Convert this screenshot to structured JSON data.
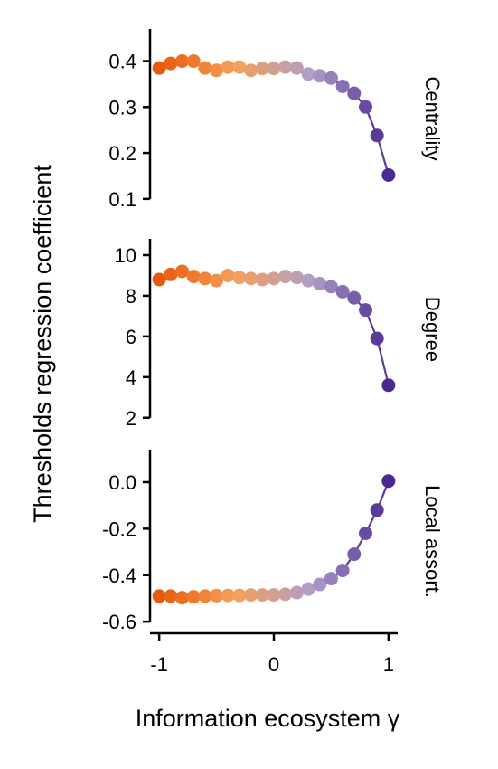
{
  "chart_data": {
    "type": "line",
    "ylabel": "Thresholds regression coefficient",
    "xlabel": "Information ecosystem γ",
    "xlim": [
      -1.08,
      1.08
    ],
    "xticks": [
      -1,
      0,
      1
    ],
    "xtick_labels": [
      "-1",
      "0",
      "1"
    ],
    "grid": false,
    "legend": "none",
    "colormap": [
      "#e8590c",
      "#f5a05a",
      "#b09ec8",
      "#4b2991"
    ],
    "line_color": "#5d3a9b",
    "x": [
      -1.0,
      -0.9,
      -0.8,
      -0.7,
      -0.6,
      -0.5,
      -0.4,
      -0.3,
      -0.2,
      -0.1,
      0.0,
      0.1,
      0.2,
      0.3,
      0.4,
      0.5,
      0.6,
      0.7,
      0.8,
      0.9,
      1.0
    ],
    "panels": [
      {
        "label": "Centrality",
        "ylim": [
          0.08,
          0.47
        ],
        "yticks": [
          0.1,
          0.2,
          0.3,
          0.4
        ],
        "ytick_labels": [
          "0.1",
          "0.2",
          "0.3",
          "0.4"
        ],
        "values": [
          0.385,
          0.395,
          0.4,
          0.4,
          0.385,
          0.38,
          0.387,
          0.387,
          0.38,
          0.384,
          0.384,
          0.387,
          0.385,
          0.372,
          0.368,
          0.363,
          0.345,
          0.33,
          0.3,
          0.238,
          0.152
        ]
      },
      {
        "label": "Degree",
        "ylim": [
          1.9,
          10.8
        ],
        "yticks": [
          2,
          4,
          6,
          8,
          10
        ],
        "ytick_labels": [
          "2",
          "4",
          "6",
          "8",
          "10"
        ],
        "values": [
          8.8,
          9.05,
          9.2,
          8.95,
          8.85,
          8.75,
          9.0,
          8.9,
          8.85,
          8.8,
          8.85,
          8.95,
          8.9,
          8.75,
          8.6,
          8.45,
          8.2,
          7.9,
          7.3,
          5.9,
          3.6
        ]
      },
      {
        "label": "Local assort.",
        "ylim": [
          -0.65,
          0.14
        ],
        "yticks": [
          -0.6,
          -0.4,
          -0.2,
          0.0
        ],
        "ytick_labels": [
          "-0.6",
          "-0.4",
          "-0.2",
          "0.0"
        ],
        "values": [
          -0.49,
          -0.49,
          -0.497,
          -0.493,
          -0.49,
          -0.488,
          -0.487,
          -0.487,
          -0.485,
          -0.485,
          -0.485,
          -0.482,
          -0.475,
          -0.46,
          -0.44,
          -0.415,
          -0.38,
          -0.31,
          -0.22,
          -0.12,
          0.005
        ]
      }
    ]
  }
}
